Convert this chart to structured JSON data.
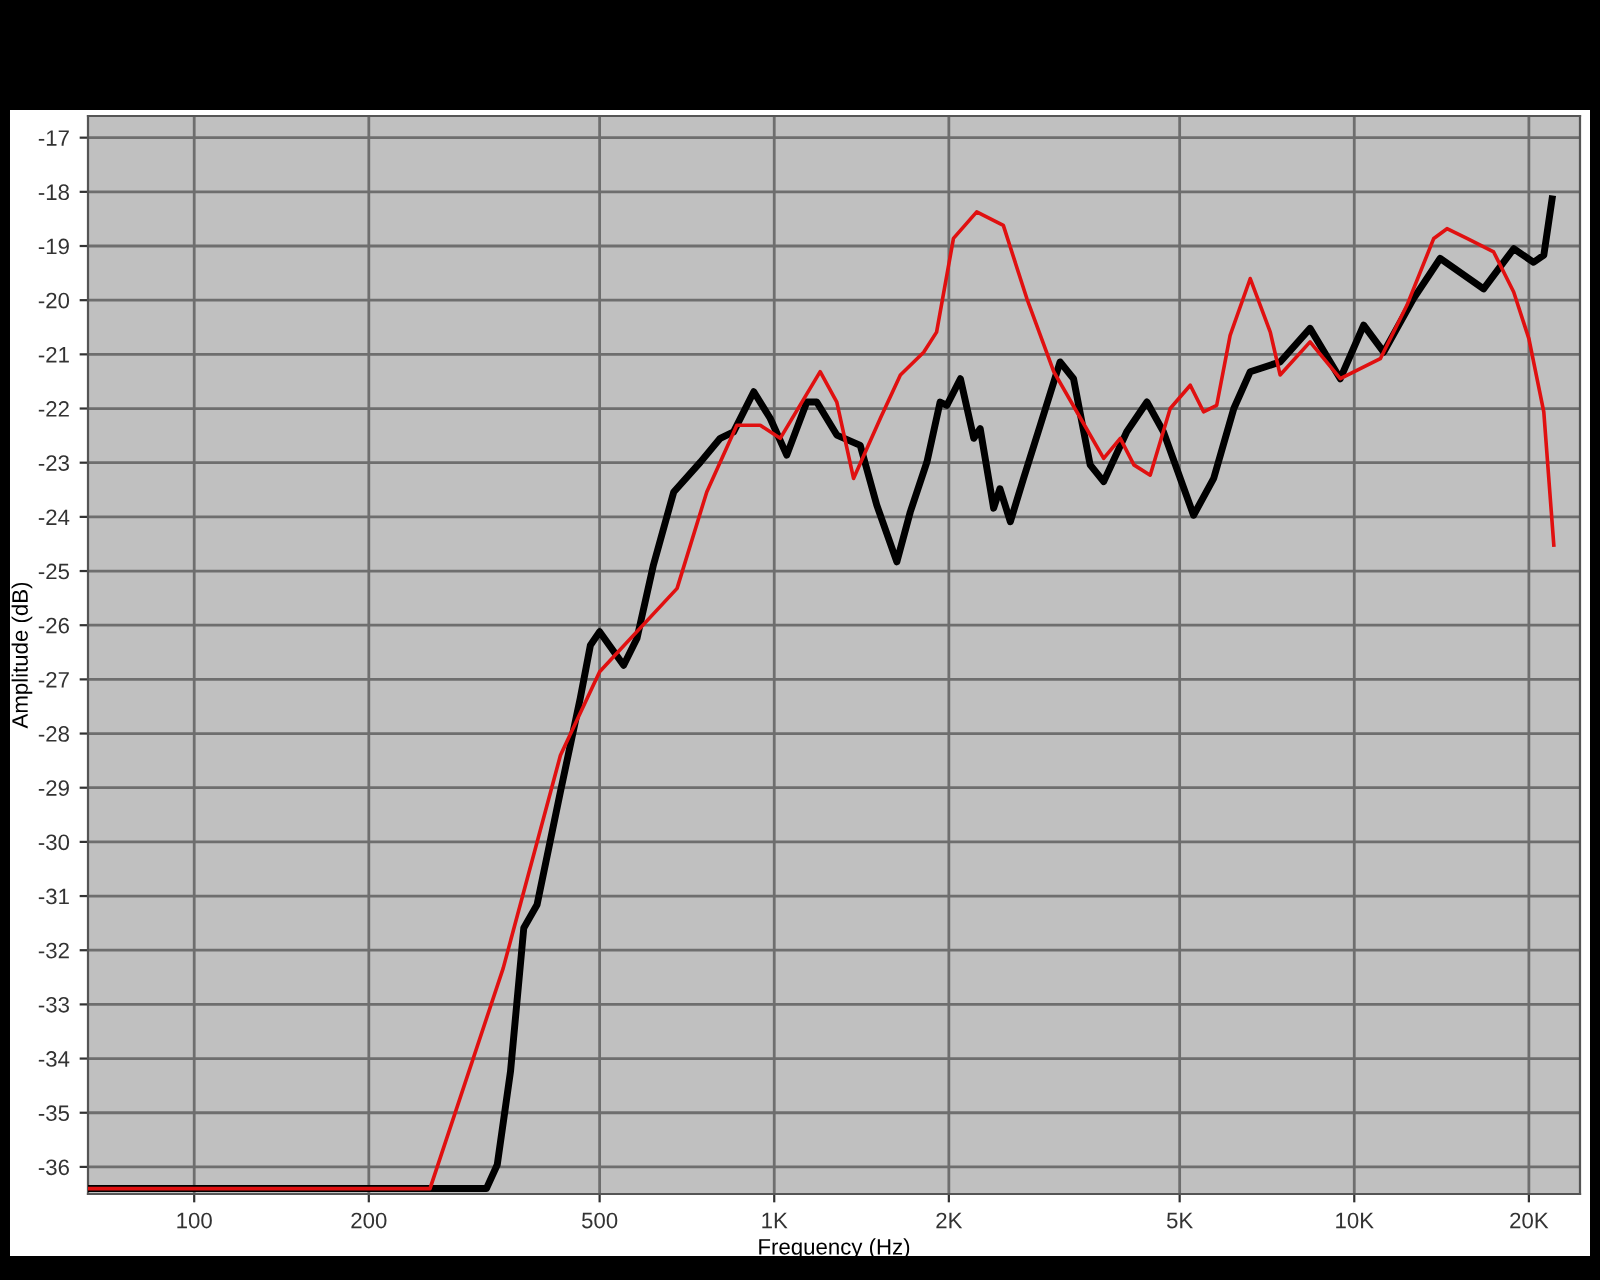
{
  "chart_data": {
    "type": "line",
    "xlabel": "Frequency (Hz)",
    "ylabel": "Amplitude (dB)",
    "log": "x",
    "grid": true,
    "legend": false,
    "marker": "none",
    "line_style": "solid",
    "xlim": [
      65.6,
      24500
    ],
    "ylim": [
      -36.5,
      -16.6
    ],
    "xticks": [
      100,
      200,
      500,
      {
        "value": 1000,
        "label": "1K"
      },
      {
        "value": 2000,
        "label": "2K"
      },
      {
        "value": 5000,
        "label": "5K"
      },
      {
        "value": 10000,
        "label": "10K"
      },
      {
        "value": 20000,
        "label": "20K"
      }
    ],
    "yticks": [
      -17,
      -18,
      -19,
      -20,
      -21,
      -22,
      -23,
      -24,
      -25,
      -26,
      -27,
      -28,
      -29,
      -30,
      -31,
      -32,
      -33,
      -34,
      -35,
      -36
    ],
    "series": [
      {
        "color": "#e01010",
        "x": [
          66,
          255,
          341,
          428,
          500,
          680,
          765,
          862,
          946,
          1024,
          1200,
          1282,
          1370,
          1524,
          1650,
          1810,
          1905,
          2037,
          2234,
          2483,
          2726,
          3033,
          3373,
          3698,
          3950,
          4169,
          4448,
          4816,
          5215,
          5497,
          5792,
          6109,
          6617,
          7165,
          7450,
          8390,
          9460,
          11090,
          12330,
          13710,
          14450,
          15640,
          17390,
          18830,
          20000,
          21220,
          22080
        ],
        "values": [
          -36.4,
          -36.4,
          -32.33,
          -28.4,
          -26.86,
          -25.32,
          -23.54,
          -22.31,
          -22.31,
          -22.55,
          -21.32,
          -21.88,
          -23.29,
          -22.18,
          -21.38,
          -20.96,
          -20.59,
          -18.86,
          -18.37,
          -18.62,
          -19.97,
          -21.32,
          -22.18,
          -22.92,
          -22.55,
          -23.04,
          -23.23,
          -22.0,
          -21.57,
          -22.06,
          -21.94,
          -20.65,
          -19.6,
          -20.59,
          -21.38,
          -20.77,
          -21.45,
          -21.08,
          -20.09,
          -18.86,
          -18.68,
          -18.86,
          -19.11,
          -19.85,
          -20.71,
          -22.06,
          -24.52
        ]
      },
      {
        "color": "#000000",
        "x": [
          66,
          319,
          333,
          351,
          370,
          390,
          428,
          463,
          482,
          500,
          550,
          580,
          619,
          671,
          746,
          807,
          851,
          922,
          984,
          1051,
          1138,
          1184,
          1282,
          1407,
          1502,
          1627,
          1716,
          1833,
          1932,
          1985,
          2094,
          2208,
          2265,
          2389,
          2450,
          2553,
          2690,
          2875,
          3110,
          3281,
          3505,
          3698,
          4053,
          4391,
          4689,
          5284,
          5723,
          6199,
          6617,
          7450,
          8390,
          9460,
          10380,
          11240,
          12650,
          14060,
          16710,
          18830,
          20380,
          21220,
          21930
        ],
        "values": [
          -36.4,
          -36.4,
          -35.96,
          -34.24,
          -31.59,
          -31.16,
          -29.07,
          -27.35,
          -26.37,
          -26.12,
          -26.74,
          -26.24,
          -24.89,
          -23.54,
          -22.99,
          -22.55,
          -22.43,
          -21.69,
          -22.18,
          -22.86,
          -21.88,
          -21.88,
          -22.49,
          -22.68,
          -23.78,
          -24.83,
          -23.91,
          -22.99,
          -21.88,
          -21.94,
          -21.45,
          -22.55,
          -22.37,
          -23.84,
          -23.48,
          -24.09,
          -23.29,
          -22.31,
          -21.14,
          -21.45,
          -23.04,
          -23.35,
          -22.43,
          -21.88,
          -22.43,
          -23.97,
          -23.29,
          -22.0,
          -21.32,
          -21.14,
          -20.52,
          -21.45,
          -20.46,
          -20.96,
          -19.97,
          -19.23,
          -19.79,
          -19.05,
          -19.3,
          -19.17,
          -18.13
        ]
      }
    ]
  }
}
